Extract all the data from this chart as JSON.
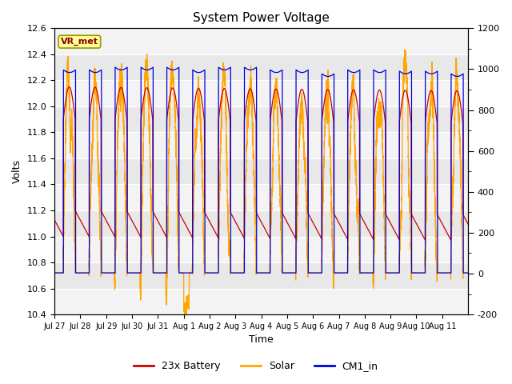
{
  "title": "System Power Voltage",
  "xlabel": "Time",
  "ylabel_left": "Volts",
  "ylim_left": [
    10.4,
    12.6
  ],
  "ylim_right": [
    -200,
    1200
  ],
  "yticks_right": [
    -200,
    0,
    200,
    400,
    600,
    800,
    1000,
    1200
  ],
  "annotation_text": "VR_met",
  "annotation_color": "#8B0000",
  "annotation_bg": "#FFFF99",
  "annotation_border": "#999900",
  "line_colors": {
    "battery": "#CC0000",
    "solar": "#FFA500",
    "cm1": "#0000DD"
  },
  "legend_labels": [
    "23x Battery",
    "Solar",
    "CM1_in"
  ],
  "bg_color": "#E8E8E8",
  "stripe_color": "#F0F0F0"
}
